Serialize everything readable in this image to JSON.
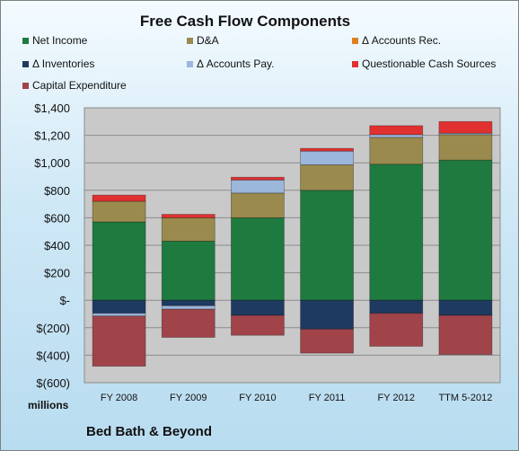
{
  "chart_data": {
    "type": "bar",
    "stacked": true,
    "title": "Free Cash Flow Components",
    "categories": [
      "FY 2008",
      "FY 2009",
      "FY 2010",
      "FY 2011",
      "FY 2012",
      "TTM 5-2012"
    ],
    "ylim": [
      -600,
      1400
    ],
    "yticks": [
      -600,
      -400,
      -200,
      0,
      200,
      400,
      600,
      800,
      1000,
      1200,
      1400
    ],
    "ytick_labels": [
      "$(600)",
      "$(400)",
      "$(200)",
      "$-",
      "$200",
      "$400",
      "$600",
      "$800",
      "$1,000",
      "$1,200",
      "$1,400"
    ],
    "units_label": "millions",
    "grid": true,
    "legend_position": "top",
    "series": [
      {
        "name": "Net Income",
        "color": "#1f7a3f",
        "values": [
          570,
          430,
          600,
          800,
          990,
          1020
        ]
      },
      {
        "name": "D&A",
        "color": "#9a8a4e",
        "values": [
          150,
          170,
          180,
          185,
          195,
          185
        ]
      },
      {
        "name": "Δ Accounts Rec.",
        "color": "#e07f1e",
        "values": [
          0,
          0,
          0,
          0,
          0,
          0
        ]
      },
      {
        "name": "Δ Inventories",
        "color": "#1f3a60",
        "values": [
          -95,
          -40,
          -110,
          -210,
          -95,
          -110
        ]
      },
      {
        "name": "Δ Accounts Pay.",
        "color": "#9bb7da",
        "values": [
          -20,
          -25,
          95,
          100,
          20,
          10
        ]
      },
      {
        "name": "Questionable Cash Sources",
        "color": "#e03030",
        "values": [
          45,
          25,
          20,
          20,
          65,
          85
        ]
      },
      {
        "name": "Capital Expenditure",
        "color": "#a0444a",
        "values": [
          -365,
          -205,
          -145,
          -175,
          -240,
          -285
        ]
      }
    ]
  },
  "company_name": "Bed Bath & Beyond"
}
